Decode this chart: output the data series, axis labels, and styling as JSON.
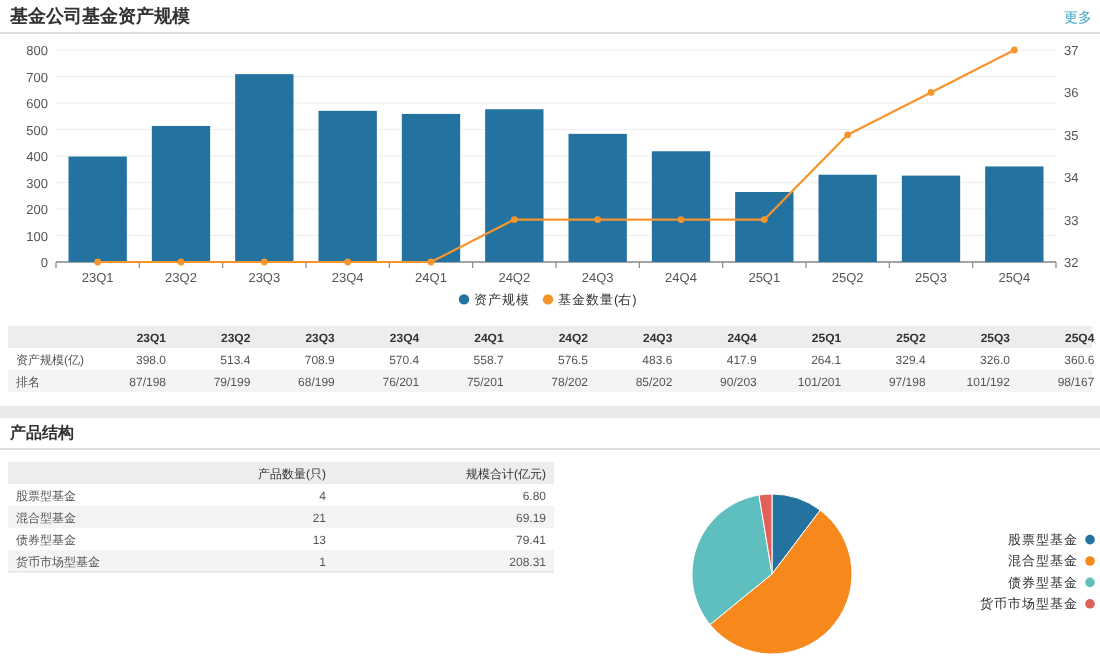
{
  "chart_data": [
    {
      "type": "bar",
      "title": "基金公司基金资产规模",
      "annotations": [
        "更多"
      ],
      "categories": [
        "23Q1",
        "23Q2",
        "23Q3",
        "23Q4",
        "24Q1",
        "24Q2",
        "24Q3",
        "24Q4",
        "25Q1",
        "25Q2",
        "25Q3",
        "25Q4"
      ],
      "series": [
        {
          "name": "资产规模",
          "type": "bar",
          "color": "#23729f",
          "values": [
            398.0,
            513.4,
            708.9,
            570.4,
            558.7,
            576.5,
            483.6,
            417.9,
            264.1,
            329.4,
            326.0,
            360.6
          ]
        },
        {
          "name": "基金数量(右)",
          "type": "line",
          "axis": "y2",
          "color": "#f7952d",
          "values": [
            32,
            32,
            32,
            32,
            32,
            33,
            33,
            33,
            33,
            35,
            36,
            37
          ]
        }
      ],
      "ylim": [
        0,
        800
      ],
      "yticks": [
        0,
        100,
        200,
        300,
        400,
        500,
        600,
        700,
        800
      ],
      "y2lim": [
        32,
        37
      ],
      "y2ticks": [
        32,
        33,
        34,
        35,
        36,
        37
      ],
      "grid": "y",
      "legend": "bottom",
      "marker": "circle",
      "line_style": "solid"
    },
    {
      "type": "other",
      "data_labels": true,
      "annotations": [
        "排名",
        "87/198",
        "79/199",
        "68/199",
        "76/201",
        "75/201",
        "78/202",
        "85/202",
        "90/203",
        "101/201",
        "97/198",
        "101/192",
        "98/167"
      ],
      "categories": [
        "23Q1",
        "23Q2",
        "23Q3",
        "23Q4",
        "24Q1",
        "24Q2",
        "24Q3",
        "24Q4",
        "25Q1",
        "25Q2",
        "25Q3",
        "25Q4"
      ],
      "series": [
        {
          "name": "资产规模(亿)",
          "values": [
            398.0,
            513.4,
            708.9,
            570.4,
            558.7,
            576.5,
            483.6,
            417.9,
            264.1,
            329.4,
            326.0,
            360.6
          ],
          "value_labels": [
            "398.0",
            "513.4",
            "708.9",
            "570.4",
            "558.7",
            "576.5",
            "483.6",
            "417.9",
            "264.1",
            "329.4",
            "326.0",
            "360.6"
          ]
        }
      ]
    },
    {
      "type": "other",
      "title": "产品结构",
      "data_labels": true,
      "categories": [
        "股票型基金",
        "混合型基金",
        "债券型基金",
        "货币市场型基金"
      ],
      "series": [
        {
          "name": "产品数量(只)",
          "values": [
            4,
            21,
            13,
            1
          ]
        },
        {
          "name": "规模合计(亿元)",
          "values": [
            6.8,
            69.19,
            79.41,
            208.31
          ],
          "value_labels": [
            "6.80",
            "69.19",
            "79.41",
            "208.31"
          ]
        }
      ]
    },
    {
      "type": "pie",
      "categories": [
        "股票型基金",
        "混合型基金",
        "债券型基金",
        "货币市场型基金"
      ],
      "values": [
        10.3,
        53.8,
        33.3,
        2.6
      ],
      "colors": [
        "#23729f",
        "#f7891c",
        "#5fbfbf",
        "#e0605a"
      ],
      "legend": "right"
    }
  ]
}
